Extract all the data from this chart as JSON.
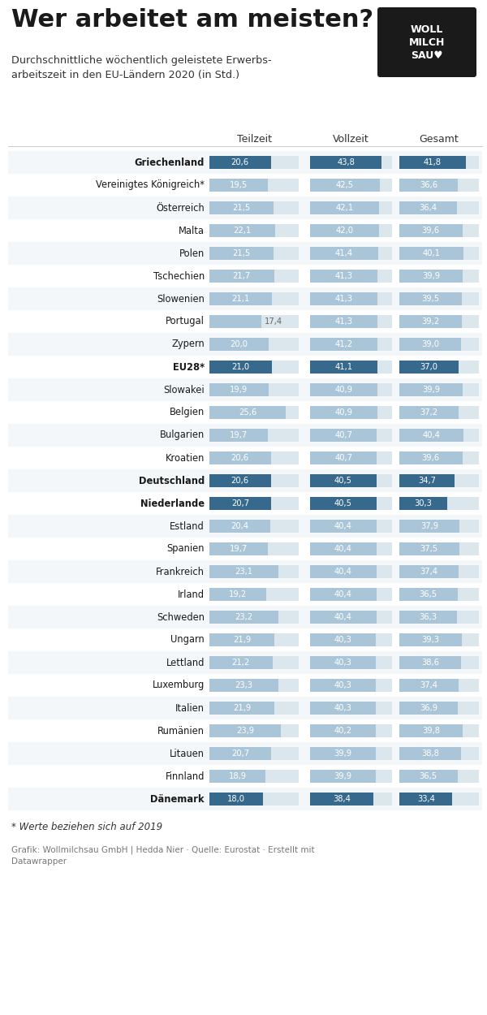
{
  "title": "Wer arbeitet am meisten?",
  "subtitle": "Durchschnittliche wöchentlich geleistete Erwerbs-\narbeitszeit in den EU-Ländern 2020 (in Std.)",
  "col_headers": [
    "Teilzeit",
    "Vollzeit",
    "Gesamt"
  ],
  "footnote": "* Werte beziehen sich auf 2019",
  "source": "Grafik: Wollmilchsau GmbH | Hedda Nier · Quelle: Eurostat · Erstellt mit\nDatawrapper",
  "countries": [
    "Griechenland",
    "Vereinigtes Königreich*",
    "Österreich",
    "Malta",
    "Polen",
    "Tschechien",
    "Slowenien",
    "Portugal",
    "Zypern",
    "EU28*",
    "Slowakei",
    "Belgien",
    "Bulgarien",
    "Kroatien",
    "Deutschland",
    "Niederlande",
    "Estland",
    "Spanien",
    "Frankreich",
    "Irland",
    "Schweden",
    "Ungarn",
    "Lettland",
    "Luxemburg",
    "Italien",
    "Rumänien",
    "Litauen",
    "Finnland",
    "Dänemark"
  ],
  "teilzeit": [
    20.6,
    19.5,
    21.5,
    22.1,
    21.5,
    21.7,
    21.1,
    17.4,
    20.0,
    21.0,
    19.9,
    25.6,
    19.7,
    20.6,
    20.6,
    20.7,
    20.4,
    19.7,
    23.1,
    19.2,
    23.2,
    21.9,
    21.2,
    23.3,
    21.9,
    23.9,
    20.7,
    18.9,
    18.0
  ],
  "vollzeit": [
    43.8,
    42.5,
    42.1,
    42.0,
    41.4,
    41.3,
    41.3,
    41.3,
    41.2,
    41.1,
    40.9,
    40.9,
    40.7,
    40.7,
    40.5,
    40.5,
    40.4,
    40.4,
    40.4,
    40.4,
    40.4,
    40.3,
    40.3,
    40.3,
    40.3,
    40.2,
    39.9,
    39.9,
    38.4
  ],
  "gesamt": [
    41.8,
    36.6,
    36.4,
    39.6,
    40.1,
    39.9,
    39.5,
    39.2,
    39.0,
    37.0,
    39.9,
    37.2,
    40.4,
    39.6,
    34.7,
    30.3,
    37.9,
    37.5,
    37.4,
    36.5,
    36.3,
    39.3,
    38.6,
    37.4,
    36.9,
    39.8,
    38.8,
    36.5,
    33.4
  ],
  "bold_countries": [
    "Griechenland",
    "EU28*",
    "Deutschland",
    "Niederlande",
    "Dänemark"
  ],
  "highlight_countries": [
    "Griechenland",
    "EU28*",
    "Deutschland",
    "Niederlande",
    "Dänemark"
  ],
  "color_light": "#abc5d8",
  "color_dark": "#37698c",
  "color_bg_bar": "#dce6ed",
  "color_bg": "#ffffff",
  "bar_max_teilzeit": 30.0,
  "bar_max_vollzeit": 50.0,
  "bar_max_gesamt": 50.0
}
